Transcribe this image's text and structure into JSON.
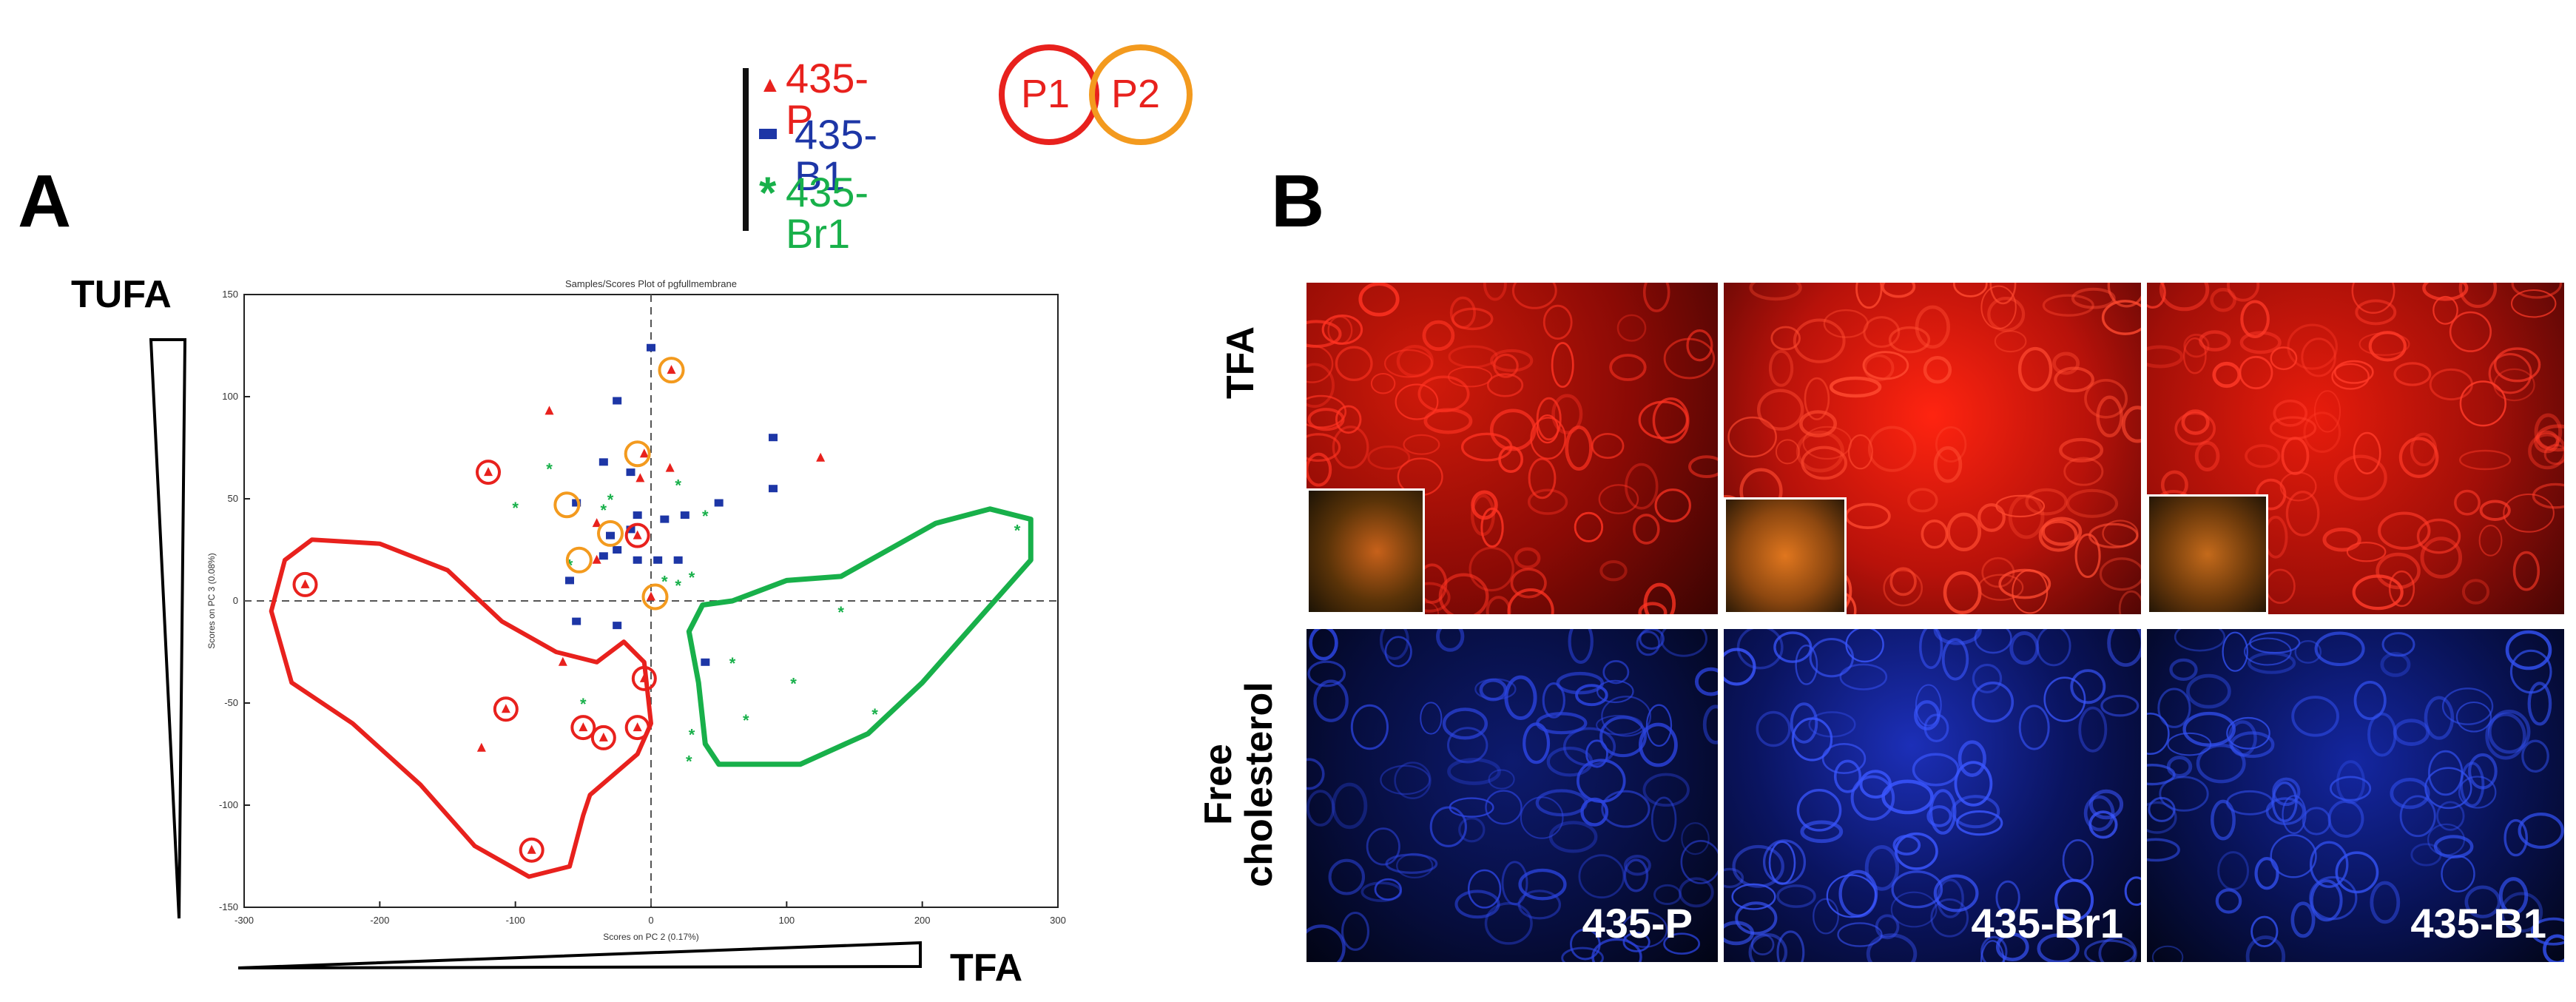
{
  "panel_a_letter": "A",
  "panel_b_letter": "B",
  "legend": {
    "items": [
      {
        "marker": "▲",
        "label": "435-P",
        "color": "#e8211d"
      },
      {
        "marker": "▬",
        "label": "435-B1",
        "color": "#1d36a6"
      },
      {
        "marker": "*",
        "label": "435-Br1",
        "color": "#18b04a"
      }
    ],
    "p1_label": "P1",
    "p2_label": "P2",
    "p1_color": "#e8211d",
    "p2_color": "#f39a1e"
  },
  "axis_arrows": {
    "tufa_label": "TUFA",
    "tfa_label": "TFA"
  },
  "chart_data": {
    "type": "scatter",
    "title": "Samples/Scores Plot of pgfullmembrane",
    "xlabel": "Scores on PC 2 (0.17%)",
    "ylabel": "Scores on PC 3 (0.08%)",
    "xlim": [
      -300,
      300
    ],
    "ylim": [
      -150,
      150
    ],
    "xticks": [
      -300,
      -200,
      -100,
      0,
      100,
      200,
      300
    ],
    "yticks": [
      -150,
      -100,
      -50,
      0,
      50,
      100,
      150
    ],
    "grid": false,
    "series": [
      {
        "name": "435-P",
        "marker": "triangle",
        "color": "#e8211d",
        "points": [
          [
            -255,
            8
          ],
          [
            -120,
            63
          ],
          [
            -10,
            32
          ],
          [
            -107,
            -53
          ],
          [
            -50,
            -62
          ],
          [
            -35,
            -67
          ],
          [
            -10,
            -62
          ],
          [
            -5,
            -38
          ],
          [
            -88,
            -122
          ],
          [
            -125,
            -72
          ],
          [
            -65,
            -30
          ],
          [
            -40,
            38
          ],
          [
            15,
            113
          ],
          [
            -75,
            93
          ],
          [
            -5,
            72
          ],
          [
            -8,
            60
          ],
          [
            125,
            70
          ],
          [
            0,
            2
          ],
          [
            -40,
            20
          ],
          [
            14,
            65
          ]
        ]
      },
      {
        "name": "435-B1",
        "marker": "square",
        "color": "#1d36a6",
        "points": [
          [
            0,
            124
          ],
          [
            -25,
            98
          ],
          [
            -35,
            68
          ],
          [
            -15,
            63
          ],
          [
            -55,
            48
          ],
          [
            10,
            40
          ],
          [
            25,
            42
          ],
          [
            50,
            48
          ],
          [
            90,
            55
          ],
          [
            90,
            80
          ],
          [
            -25,
            25
          ],
          [
            -35,
            22
          ],
          [
            -60,
            10
          ],
          [
            -10,
            20
          ],
          [
            5,
            20
          ],
          [
            20,
            20
          ],
          [
            -55,
            -10
          ],
          [
            -25,
            -12
          ],
          [
            -10,
            42
          ],
          [
            40,
            -30
          ],
          [
            -30,
            32
          ],
          [
            -15,
            35
          ]
        ]
      },
      {
        "name": "435-Br1",
        "marker": "star",
        "color": "#18b04a",
        "points": [
          [
            -75,
            65
          ],
          [
            -30,
            50
          ],
          [
            20,
            57
          ],
          [
            40,
            42
          ],
          [
            -100,
            46
          ],
          [
            -35,
            45
          ],
          [
            30,
            12
          ],
          [
            20,
            8
          ],
          [
            10,
            10
          ],
          [
            -60,
            18
          ],
          [
            140,
            -5
          ],
          [
            60,
            -30
          ],
          [
            105,
            -40
          ],
          [
            30,
            -65
          ],
          [
            70,
            -58
          ],
          [
            165,
            -55
          ],
          [
            28,
            -78
          ],
          [
            -50,
            -50
          ],
          [
            270,
            35
          ]
        ]
      }
    ],
    "annotations": {
      "p1_circled": [
        [
          -255,
          8
        ],
        [
          -120,
          63
        ],
        [
          -10,
          32
        ],
        [
          -107,
          -53
        ],
        [
          -50,
          -62
        ],
        [
          -35,
          -67
        ],
        [
          -10,
          -62
        ],
        [
          -5,
          -38
        ],
        [
          -88,
          -122
        ]
      ],
      "p2_circled": [
        [
          15,
          113
        ],
        [
          -10,
          72
        ],
        [
          -62,
          47
        ],
        [
          -30,
          33
        ],
        [
          -53,
          20
        ],
        [
          3,
          2
        ]
      ]
    }
  },
  "panel_b": {
    "row_labels": [
      "TFA",
      "Free\ncholesterol"
    ],
    "columns": [
      "435-P",
      "435-Br1",
      "435-B1"
    ]
  }
}
